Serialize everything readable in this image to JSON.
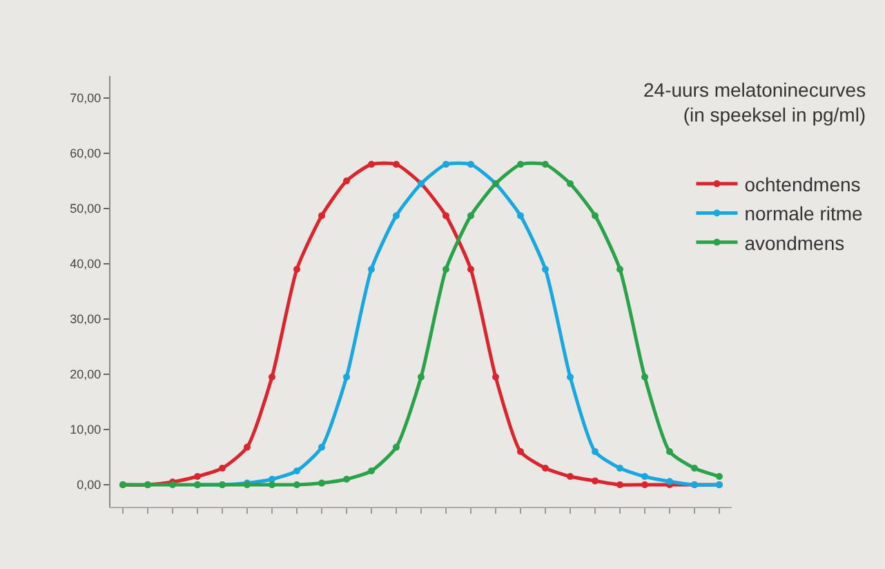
{
  "chart_data": {
    "type": "line",
    "legend_title": "24-uurs melatoninecurves\n(in speeksel in pg/ml)",
    "categories": [
      null,
      null,
      null,
      null,
      null,
      null,
      null,
      null,
      null,
      null,
      null,
      null,
      null,
      null,
      null,
      null,
      null,
      null,
      null,
      null,
      null,
      null,
      null,
      null,
      null
    ],
    "ylim": [
      -4,
      74
    ],
    "yticks": [
      {
        "value": 0,
        "label": "0,00"
      },
      {
        "value": 10,
        "label": "10,00"
      },
      {
        "value": 20,
        "label": "20,00"
      },
      {
        "value": 30,
        "label": "30,00"
      },
      {
        "value": 40,
        "label": "40,00"
      },
      {
        "value": 50,
        "label": "50,00"
      },
      {
        "value": 60,
        "label": "60,00"
      },
      {
        "value": 70,
        "label": "70,00"
      }
    ],
    "tick_labels": "y",
    "grid": false,
    "legend": "top right",
    "marker": "circle",
    "line_style": "solid",
    "series": [
      {
        "name": "ochtendmens",
        "color": "#d9262e",
        "values": [
          0,
          0,
          0.5,
          1.5,
          3,
          6.8,
          19.5,
          39,
          48.7,
          55,
          58,
          58,
          54.5,
          48.7,
          39,
          19.5,
          6,
          3,
          1.5,
          0.7,
          0,
          0,
          0,
          0,
          0
        ]
      },
      {
        "name": "normale ritme",
        "color": "#1aa7e0",
        "values": [
          null,
          null,
          null,
          0,
          0,
          0.3,
          1,
          2.5,
          6.8,
          19.5,
          39,
          48.7,
          54.5,
          58,
          58,
          54.5,
          48.7,
          39,
          19.5,
          6,
          3,
          1.5,
          0.6,
          0,
          0
        ]
      },
      {
        "name": "avondmens",
        "color": "#2aa24a",
        "values": [
          0,
          0,
          0,
          0,
          0,
          0,
          0,
          0,
          0.3,
          1,
          2.5,
          6.8,
          19.5,
          39,
          48.7,
          54.5,
          58,
          58,
          54.5,
          48.7,
          39,
          19.5,
          6,
          3,
          1.5
        ]
      }
    ]
  }
}
